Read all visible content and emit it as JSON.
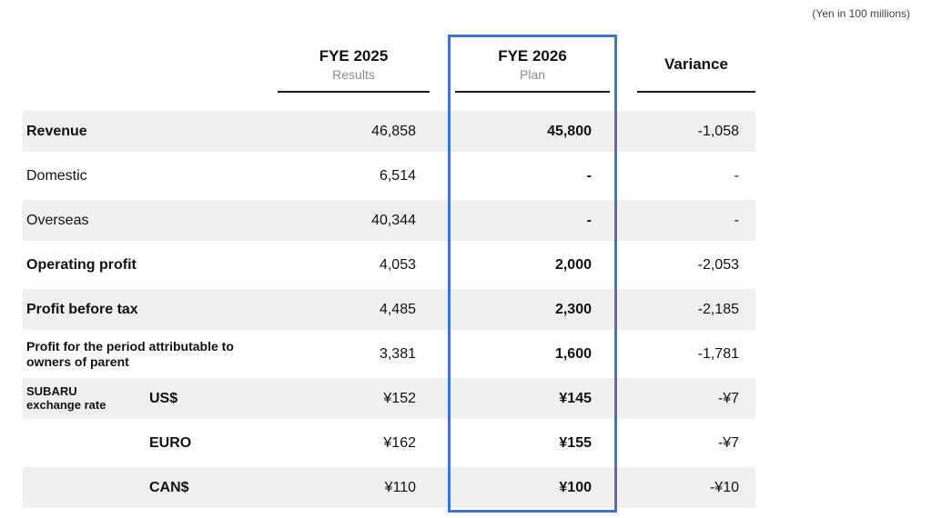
{
  "note": "(Yen in 100 millions)",
  "colors": {
    "accent": "#4472c4",
    "row_shading": "#f0f0f0"
  },
  "header": {
    "fye2025": {
      "title": "FYE 2025",
      "subtitle": "Results"
    },
    "fye2026": {
      "title": "FYE 2026",
      "subtitle": "Plan"
    },
    "variance": {
      "title": "Variance"
    }
  },
  "table": {
    "rows": [
      {
        "label": "Revenue",
        "bold": true,
        "indent": false,
        "shaded": true,
        "fye2025": "46,858",
        "fye2026": "45,800",
        "variance": "-1,058"
      },
      {
        "label": "Domestic",
        "bold": false,
        "indent": false,
        "shaded": false,
        "fye2025": "6,514",
        "fye2026": "-",
        "variance": "-"
      },
      {
        "label": "Overseas",
        "bold": false,
        "indent": false,
        "shaded": true,
        "fye2025": "40,344",
        "fye2026": "-",
        "variance": "-"
      },
      {
        "label": "Operating profit",
        "bold": true,
        "indent": false,
        "shaded": false,
        "fye2025": "4,053",
        "fye2026": "2,000",
        "variance": "-2,053"
      },
      {
        "label": "Profit before tax",
        "bold": true,
        "indent": false,
        "shaded": true,
        "fye2025": "4,485",
        "fye2026": "2,300",
        "variance": "-2,185"
      },
      {
        "label": "Profit for the period attributable to owners of parent",
        "bold": true,
        "indent": false,
        "shaded": false,
        "fye2025": "3,381",
        "fye2026": "1,600",
        "variance": "-1,781"
      },
      {
        "label": "US$",
        "group": "SUBARU exchange rate",
        "bold": true,
        "indent": true,
        "shaded": true,
        "fye2025": "¥152",
        "fye2026": "¥145",
        "variance": "-¥7"
      },
      {
        "label": "EURO",
        "bold": true,
        "indent": true,
        "shaded": false,
        "fye2025": "¥162",
        "fye2026": "¥155",
        "variance": "-¥7"
      },
      {
        "label": "CAN$",
        "bold": true,
        "indent": true,
        "shaded": true,
        "fye2025": "¥110",
        "fye2026": "¥100",
        "variance": "-¥10"
      }
    ]
  }
}
